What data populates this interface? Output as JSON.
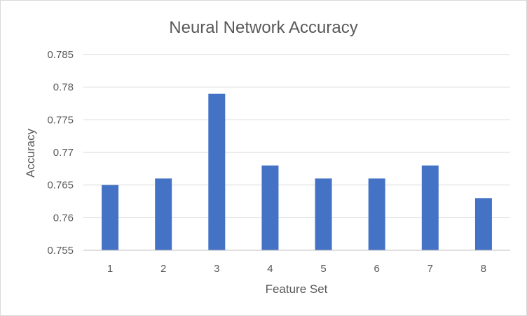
{
  "chart_data": {
    "type": "bar",
    "title": "Neural Network Accuracy",
    "xlabel": "Feature Set",
    "ylabel": "Accuracy",
    "categories": [
      "1",
      "2",
      "3",
      "4",
      "5",
      "6",
      "7",
      "8"
    ],
    "values": [
      0.765,
      0.766,
      0.779,
      0.768,
      0.766,
      0.766,
      0.768,
      0.763
    ],
    "ylim": [
      0.755,
      0.785
    ],
    "yticks": [
      "0.755",
      "0.76",
      "0.765",
      "0.77",
      "0.775",
      "0.78",
      "0.785"
    ],
    "ytick_values": [
      0.755,
      0.76,
      0.765,
      0.77,
      0.775,
      0.78,
      0.785
    ],
    "grid": true,
    "legend": "none",
    "bar_color": "#4472c4"
  }
}
